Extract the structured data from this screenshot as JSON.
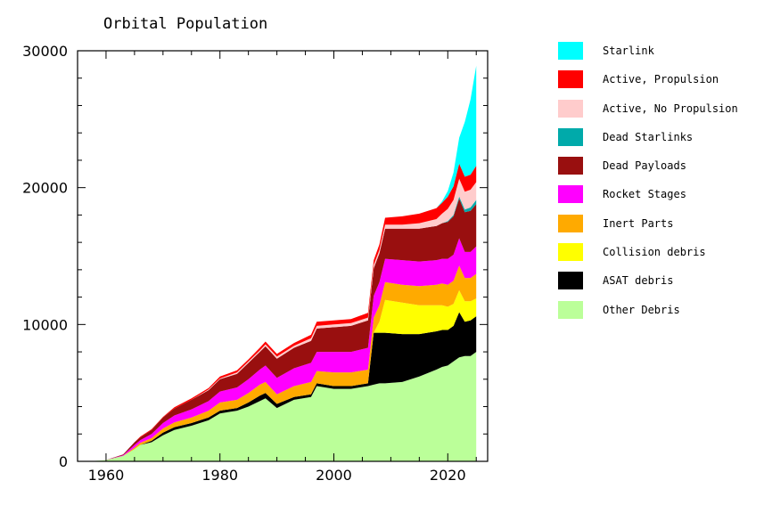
{
  "chart_data": {
    "type": "area",
    "stacked": true,
    "title": "Orbital Population",
    "xlabel": "",
    "ylabel": "",
    "xlim": [
      1955,
      2027
    ],
    "ylim": [
      0,
      30000
    ],
    "x_ticks": [
      1960,
      1980,
      2000,
      2020
    ],
    "y_ticks": [
      0,
      10000,
      20000,
      30000
    ],
    "x_tick_labels": [
      "1960",
      "1980",
      "2000",
      "2020"
    ],
    "y_tick_labels": [
      "0",
      "10000",
      "20000",
      "30000"
    ],
    "grid": false,
    "legend_position": "right",
    "x": [
      1957,
      1960,
      1963,
      1965,
      1966,
      1968,
      1970,
      1972,
      1975,
      1978,
      1980,
      1983,
      1985,
      1987,
      1988,
      1990,
      1993,
      1996,
      1997,
      2000,
      2003,
      2006,
      2007,
      2008,
      2009,
      2012,
      2015,
      2018,
      2019,
      2020,
      2021,
      2022,
      2023,
      2024,
      2025
    ],
    "series": [
      {
        "name": "Other Debris",
        "color": "#bbff99",
        "values": [
          0,
          100,
          400,
          900,
          1200,
          1400,
          1900,
          2300,
          2600,
          3000,
          3500,
          3700,
          4000,
          4400,
          4600,
          3900,
          4500,
          4700,
          5500,
          5300,
          5300,
          5500,
          5600,
          5700,
          5700,
          5800,
          6200,
          6700,
          6900,
          7000,
          7300,
          7600,
          7700,
          7700,
          8000
        ]
      },
      {
        "name": "ASAT debris",
        "color": "#000000",
        "values": [
          0,
          0,
          0,
          0,
          0,
          100,
          200,
          200,
          200,
          200,
          200,
          200,
          300,
          400,
          400,
          300,
          200,
          200,
          200,
          200,
          200,
          200,
          3800,
          3700,
          3700,
          3500,
          3100,
          2800,
          2700,
          2600,
          2600,
          3300,
          2500,
          2600,
          2600
        ]
      },
      {
        "name": "Collision debris",
        "color": "#ffff00",
        "values": [
          0,
          0,
          0,
          0,
          0,
          0,
          0,
          0,
          0,
          0,
          0,
          0,
          0,
          0,
          0,
          0,
          0,
          0,
          0,
          0,
          0,
          0,
          0,
          800,
          2400,
          2300,
          2100,
          1900,
          1800,
          1700,
          1600,
          1600,
          1500,
          1400,
          1300
        ]
      },
      {
        "name": "Inert Parts",
        "color": "#ffaa00",
        "values": [
          0,
          0,
          0,
          100,
          150,
          200,
          300,
          350,
          400,
          500,
          600,
          600,
          700,
          800,
          800,
          700,
          800,
          900,
          900,
          1000,
          1000,
          1000,
          1100,
          1200,
          1300,
          1300,
          1400,
          1500,
          1600,
          1600,
          1700,
          1800,
          1700,
          1700,
          1800
        ]
      },
      {
        "name": "Rocket Stages",
        "color": "#ff00ff",
        "values": [
          0,
          0,
          50,
          200,
          200,
          300,
          400,
          500,
          600,
          700,
          800,
          900,
          1000,
          1100,
          1200,
          1200,
          1300,
          1400,
          1400,
          1500,
          1500,
          1600,
          1600,
          1700,
          1700,
          1800,
          1800,
          1800,
          1800,
          1900,
          1900,
          2000,
          1900,
          1900,
          2000
        ]
      },
      {
        "name": "Dead Payloads",
        "color": "#990f0f",
        "values": [
          0,
          0,
          50,
          200,
          200,
          300,
          400,
          500,
          700,
          800,
          900,
          1000,
          1200,
          1300,
          1400,
          1400,
          1500,
          1600,
          1700,
          1800,
          1900,
          2000,
          2000,
          2100,
          2200,
          2300,
          2400,
          2500,
          2600,
          2700,
          2800,
          2900,
          2900,
          3000,
          3100
        ]
      },
      {
        "name": "Dead Starlinks",
        "color": "#00aaaa",
        "values": [
          0,
          0,
          0,
          0,
          0,
          0,
          0,
          0,
          0,
          0,
          0,
          0,
          0,
          0,
          0,
          0,
          0,
          0,
          0,
          0,
          0,
          0,
          0,
          0,
          0,
          0,
          0,
          0,
          0,
          50,
          100,
          150,
          200,
          250,
          300
        ]
      },
      {
        "name": "Active, No Propulsion",
        "color": "#ffcccc",
        "values": [
          0,
          0,
          0,
          0,
          0,
          0,
          0,
          0,
          0,
          50,
          50,
          100,
          100,
          100,
          150,
          150,
          150,
          200,
          200,
          200,
          200,
          200,
          250,
          250,
          300,
          300,
          400,
          500,
          700,
          900,
          1100,
          1300,
          1300,
          1300,
          1300
        ]
      },
      {
        "name": "Active, Propulsion",
        "color": "#ff0000",
        "values": [
          0,
          0,
          0,
          0,
          50,
          50,
          50,
          100,
          100,
          100,
          150,
          150,
          150,
          200,
          200,
          200,
          200,
          250,
          300,
          300,
          300,
          350,
          350,
          400,
          500,
          600,
          700,
          800,
          800,
          900,
          1000,
          1100,
          1100,
          1100,
          1200
        ]
      },
      {
        "name": "Starlink",
        "color": "#00ffff",
        "values": [
          0,
          0,
          0,
          0,
          0,
          0,
          0,
          0,
          0,
          0,
          0,
          0,
          0,
          0,
          0,
          0,
          0,
          0,
          0,
          0,
          0,
          0,
          0,
          0,
          0,
          0,
          0,
          0,
          100,
          400,
          1000,
          1900,
          4000,
          5500,
          7300
        ]
      }
    ]
  }
}
